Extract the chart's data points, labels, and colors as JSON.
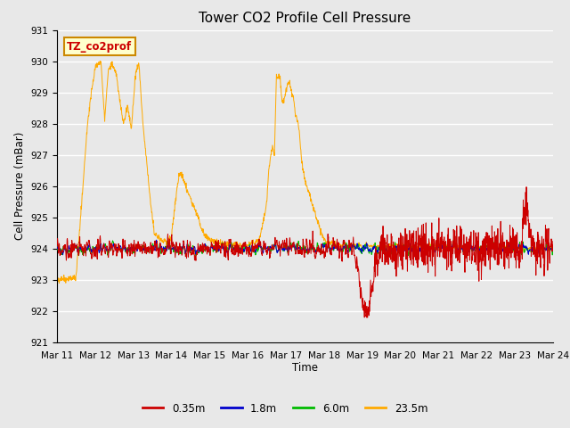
{
  "title": "Tower CO2 Profile Cell Pressure",
  "xlabel": "Time",
  "ylabel": "Cell Pressure (mBar)",
  "ylim": [
    921.0,
    931.0
  ],
  "yticks": [
    921.0,
    922.0,
    923.0,
    924.0,
    925.0,
    926.0,
    927.0,
    928.0,
    929.0,
    930.0,
    931.0
  ],
  "xtick_labels": [
    "Mar 11",
    "Mar 12",
    "Mar 13",
    "Mar 14",
    "Mar 15",
    "Mar 16",
    "Mar 17",
    "Mar 18",
    "Mar 19",
    "Mar 20",
    "Mar 21",
    "Mar 22",
    "Mar 23",
    "Mar 24"
  ],
  "bg_color": "#e8e8e8",
  "legend_entries": [
    "0.35m",
    "1.8m",
    "6.0m",
    "23.5m"
  ],
  "legend_colors": [
    "#cc0000",
    "#0000cc",
    "#00bb00",
    "#ffaa00"
  ],
  "annotation_text": "TZ_co2prof",
  "annotation_bg": "#ffffcc",
  "annotation_border": "#cc8800",
  "annotation_text_color": "#cc0000",
  "series_colors": [
    "#cc0000",
    "#0000cc",
    "#00bb00",
    "#ffaa00"
  ],
  "linewidth": 0.7,
  "title_fontsize": 11
}
